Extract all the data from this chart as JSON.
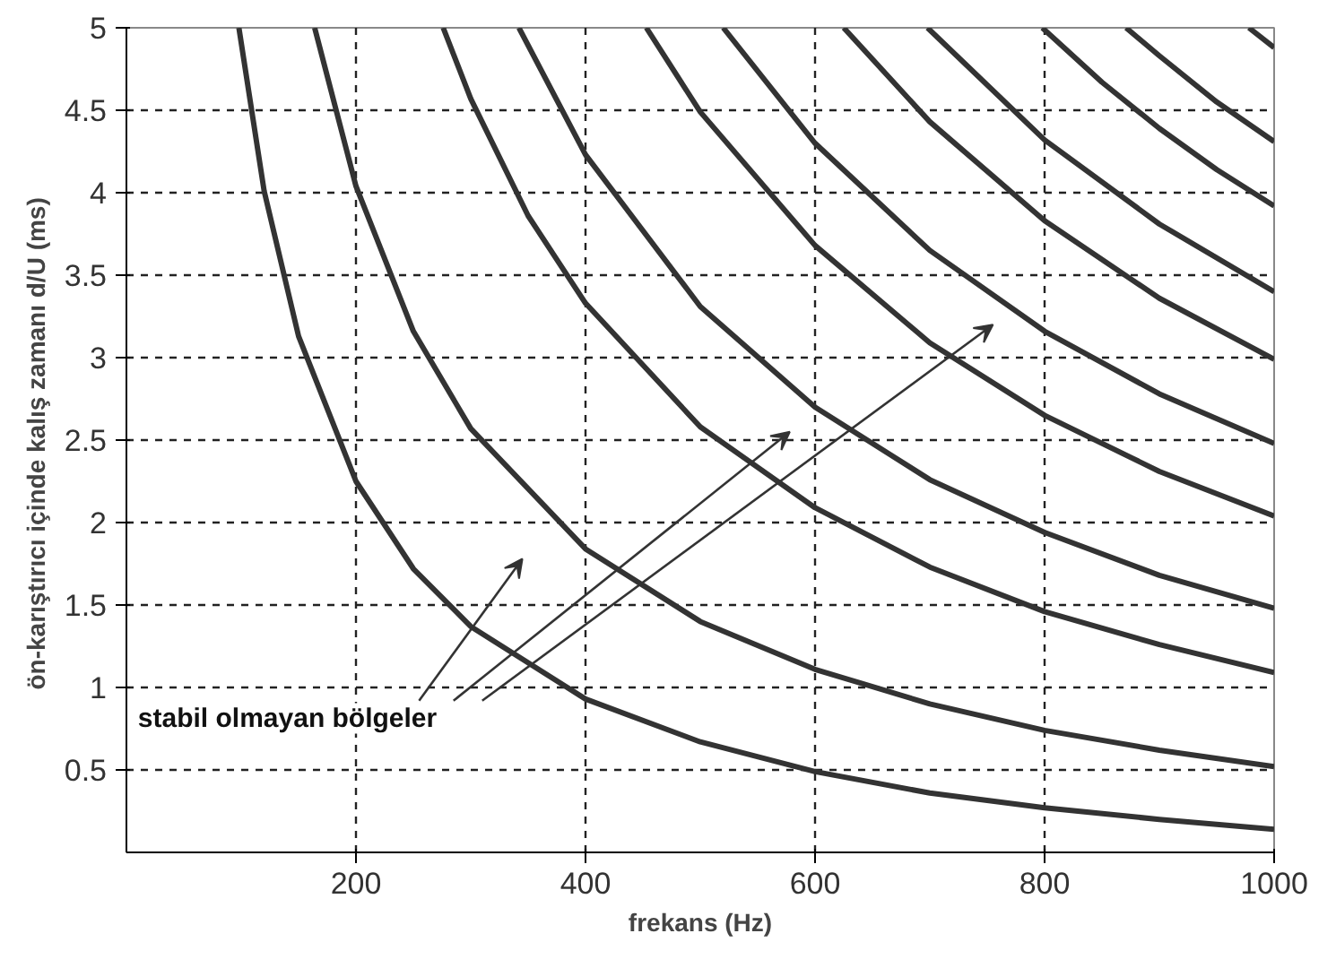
{
  "chart_data": {
    "type": "line",
    "xlabel": "frekans (Hz)",
    "ylabel": "ön-karıştırıcı içinde kalış zamanı  d/U (ms)",
    "xlim": [
      0,
      1000
    ],
    "ylim": [
      0,
      5
    ],
    "xticks": [
      200,
      400,
      600,
      800,
      1000
    ],
    "yticks": [
      0.5,
      1,
      1.5,
      2,
      2.5,
      3,
      3.5,
      4,
      4.5,
      5
    ],
    "grid": true,
    "marker": "none",
    "line_style": "solid",
    "annotations": [
      "stabil olmayan bölgeler"
    ],
    "series": [
      {
        "color": "#333333",
        "x": [
          98,
          120,
          150,
          200,
          250,
          300,
          400,
          500,
          600,
          700,
          800,
          900,
          1000
        ],
        "values": [
          5.0,
          4.01,
          3.13,
          2.25,
          1.72,
          1.37,
          0.93,
          0.67,
          0.49,
          0.36,
          0.27,
          0.2,
          0.14
        ]
      },
      {
        "color": "#333333",
        "x": [
          164,
          200,
          250,
          300,
          400,
          500,
          600,
          700,
          800,
          900,
          1000
        ],
        "values": [
          5.0,
          4.04,
          3.16,
          2.57,
          1.84,
          1.4,
          1.11,
          0.9,
          0.74,
          0.62,
          0.52
        ]
      },
      {
        "color": "#333333",
        "x": [
          276,
          300,
          350,
          400,
          500,
          600,
          700,
          800,
          900,
          1000
        ],
        "values": [
          5.0,
          4.57,
          3.86,
          3.33,
          2.58,
          2.09,
          1.73,
          1.46,
          1.26,
          1.09
        ]
      },
      {
        "color": "#333333",
        "x": [
          342,
          400,
          500,
          600,
          700,
          800,
          900,
          1000
        ],
        "values": [
          5.0,
          4.23,
          3.31,
          2.7,
          2.26,
          1.94,
          1.68,
          1.48
        ]
      },
      {
        "color": "#333333",
        "x": [
          453,
          500,
          600,
          700,
          800,
          900,
          1000
        ],
        "values": [
          5.0,
          4.49,
          3.68,
          3.09,
          2.65,
          2.31,
          2.04
        ]
      },
      {
        "color": "#333333",
        "x": [
          520,
          600,
          700,
          800,
          900,
          1000
        ],
        "values": [
          5.0,
          4.3,
          3.65,
          3.16,
          2.78,
          2.48
        ]
      },
      {
        "color": "#333333",
        "x": [
          625,
          700,
          800,
          900,
          1000
        ],
        "values": [
          5.0,
          4.43,
          3.83,
          3.36,
          2.99
        ]
      },
      {
        "color": "#333333",
        "x": [
          698,
          800,
          900,
          1000
        ],
        "values": [
          5.0,
          4.32,
          3.81,
          3.4
        ]
      },
      {
        "color": "#333333",
        "x": [
          798,
          850,
          900,
          950,
          1000
        ],
        "values": [
          5.0,
          4.67,
          4.39,
          4.14,
          3.92
        ]
      },
      {
        "color": "#333333",
        "x": [
          871,
          900,
          950,
          1000
        ],
        "values": [
          5.0,
          4.83,
          4.55,
          4.31
        ]
      },
      {
        "color": "#333333",
        "x": [
          978,
          1000
        ],
        "values": [
          5.0,
          4.88
        ]
      }
    ]
  }
}
